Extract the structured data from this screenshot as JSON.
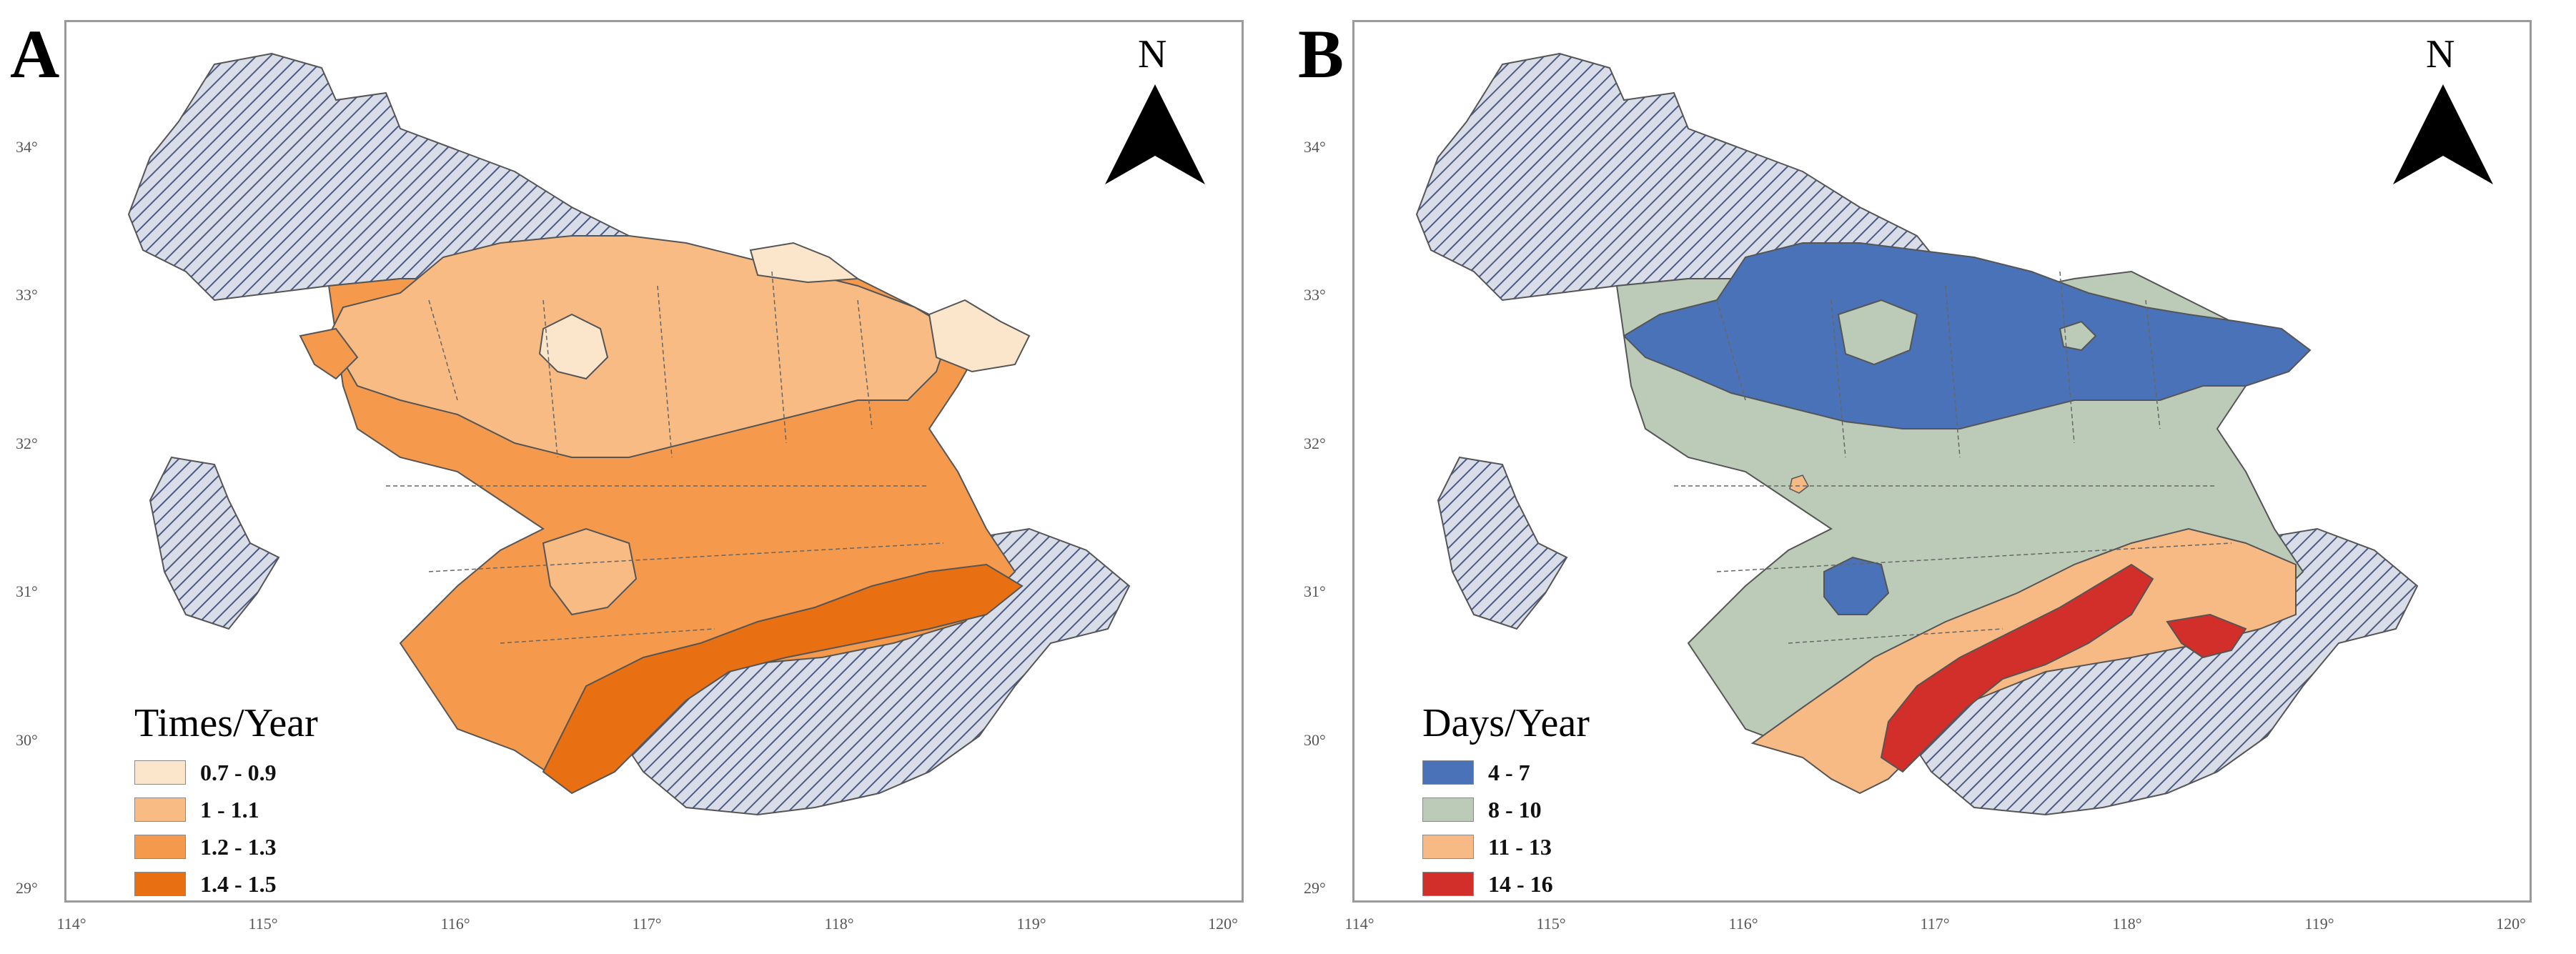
{
  "panels": [
    {
      "letter": "A",
      "north_label": "N",
      "legend_title": "Times/Year",
      "legend": [
        {
          "label": "0.7 - 0.9",
          "color": "#fbe6cc"
        },
        {
          "label": "1 - 1.1",
          "color": "#f8bb83"
        },
        {
          "label": "1.2 - 1.3",
          "color": "#f59a4c"
        },
        {
          "label": "1.4 - 1.5",
          "color": "#e86f12"
        }
      ]
    },
    {
      "letter": "B",
      "north_label": "N",
      "legend_title": "Days/Year",
      "legend": [
        {
          "label": "4 - 7",
          "color": "#4a72b8"
        },
        {
          "label": "8 - 10",
          "color": "#bccbb8"
        },
        {
          "label": "11 - 13",
          "color": "#f7ba85"
        },
        {
          "label": "14 - 16",
          "color": "#d22f2a"
        }
      ]
    }
  ],
  "axes": {
    "latitudes": [
      "34°",
      "33°",
      "32°",
      "31°",
      "30°",
      "29°"
    ],
    "longitudes": [
      "114°",
      "115°",
      "116°",
      "117°",
      "118°",
      "119°",
      "120°"
    ]
  },
  "colors": {
    "hatch_fill": "#d9dde8",
    "hatch_line": "#4c5a86",
    "boundary": "#555555"
  }
}
